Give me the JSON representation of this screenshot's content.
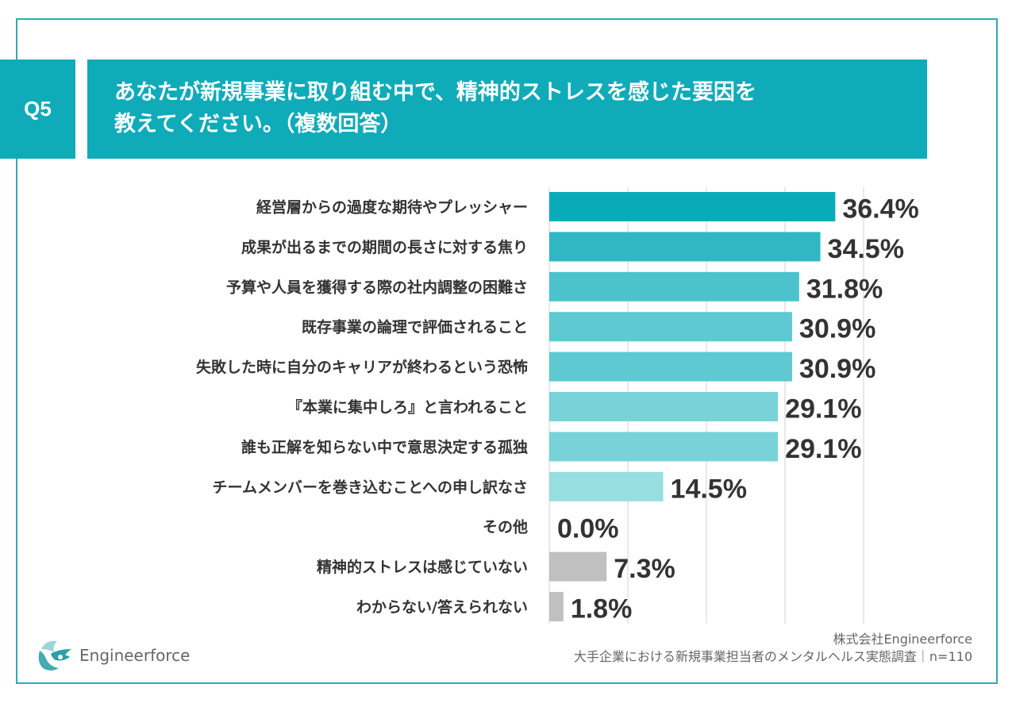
{
  "header": {
    "question_number": "Q5",
    "title_line1": "あなたが新規事業に取り組む中で、精神的ストレスを感じた要因を",
    "title_line2": "教えてください。（複数回答）"
  },
  "colors": {
    "accent": "#0fabb8",
    "frame": "#34a9b4",
    "bar_gray": "#c0c0c0",
    "gridline": "#d8d8d8",
    "text": "#333333"
  },
  "chart_data": {
    "type": "bar",
    "orientation": "horizontal",
    "title": "あなたが新規事業に取り組む中で、精神的ストレスを感じた要因を教えてください。（複数回答）",
    "xlabel": "",
    "ylabel": "",
    "xlim": [
      0,
      40
    ],
    "grid": true,
    "unit": "%",
    "categories": [
      "経営層からの過度な期待やプレッシャー",
      "成果が出るまでの期間の長さに対する焦り",
      "予算や人員を獲得する際の社内調整の困難さ",
      "既存事業の論理で評価されること",
      "失敗した時に自分のキャリアが終わるという恐怖",
      "『本業に集中しろ』と言われること",
      "誰も正解を知らない中で意思決定する孤独",
      "チームメンバーを巻き込むことへの申し訳なさ",
      "その他",
      "精神的ストレスは感じていない",
      "わからない/答えられない"
    ],
    "values": [
      36.4,
      34.5,
      31.8,
      30.9,
      30.9,
      29.1,
      29.1,
      14.5,
      0.0,
      7.3,
      1.8
    ],
    "value_labels": [
      "36.4%",
      "34.5%",
      "31.8%",
      "30.9%",
      "30.9%",
      "29.1%",
      "29.1%",
      "14.5%",
      "0.0%",
      "7.3%",
      "1.8%"
    ],
    "bar_colors": [
      "#0aabb8",
      "#2fb8c4",
      "#4cc3cc",
      "#5ec9d1",
      "#5ec9d1",
      "#78d3d8",
      "#78d3d8",
      "#98dee1",
      "#b0e4e7",
      "#c0c0c0",
      "#c0c0c0"
    ]
  },
  "footer": {
    "logo_text": "Engineerforce",
    "company": "株式会社Engineerforce",
    "survey": "大手企業における新規事業担当者のメンタルヘルス実態調査｜n=110"
  }
}
